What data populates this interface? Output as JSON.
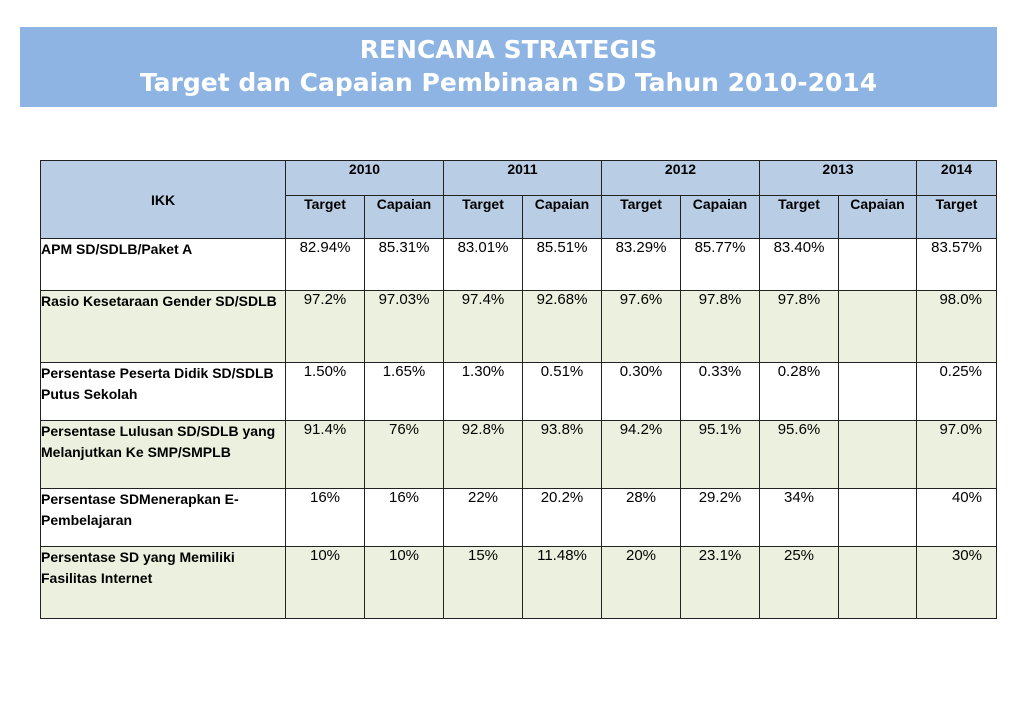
{
  "title": {
    "line1": "RENCANA STRATEGIS",
    "line2": "Target dan Capaian Pembinaan SD Tahun 2010-2014"
  },
  "table": {
    "ikk_header": "IKK",
    "years": [
      "2010",
      "2011",
      "2012",
      "2013",
      "2014"
    ],
    "sub_headers": [
      "Target",
      "Capaian",
      "Target",
      "Capaian",
      "Target",
      "Capaian",
      "Target",
      "Capaian",
      "Target"
    ],
    "rows": [
      {
        "label": "APM SD/SDLB/Paket A",
        "values": [
          "82.94%",
          "85.31%",
          "83.01%",
          "85.51%",
          "83.29%",
          "85.77%",
          "83.40%",
          "",
          "83.57%"
        ]
      },
      {
        "label": "Rasio Kesetaraan Gender SD/SDLB",
        "values": [
          "97.2%",
          "97.03%",
          "97.4%",
          "92.68%",
          "97.6%",
          "97.8%",
          "97.8%",
          "",
          "98.0%"
        ]
      },
      {
        "label": "Persentase Peserta Didik SD/SDLB Putus Sekolah",
        "values": [
          "1.50%",
          "1.65%",
          "1.30%",
          "0.51%",
          "0.30%",
          "0.33%",
          "0.28%",
          "",
          "0.25%"
        ]
      },
      {
        "label": "Persentase Lulusan SD/SDLB yang Melanjutkan Ke SMP/SMPLB",
        "values": [
          "91.4%",
          "76%",
          "92.8%",
          "93.8%",
          "94.2%",
          "95.1%",
          "95.6%",
          "",
          "97.0%"
        ]
      },
      {
        "label": "Persentase SDMenerapkan E-Pembelajaran",
        "values": [
          "16%",
          "16%",
          "22%",
          "20.2%",
          "28%",
          "29.2%",
          "34%",
          "",
          "40%"
        ]
      },
      {
        "label": "Persentase SD yang Memiliki Fasilitas Internet",
        "values": [
          "10%",
          "10%",
          "15%",
          "11.48%",
          "20%",
          "23.1%",
          "25%",
          "",
          "30%"
        ]
      }
    ]
  }
}
